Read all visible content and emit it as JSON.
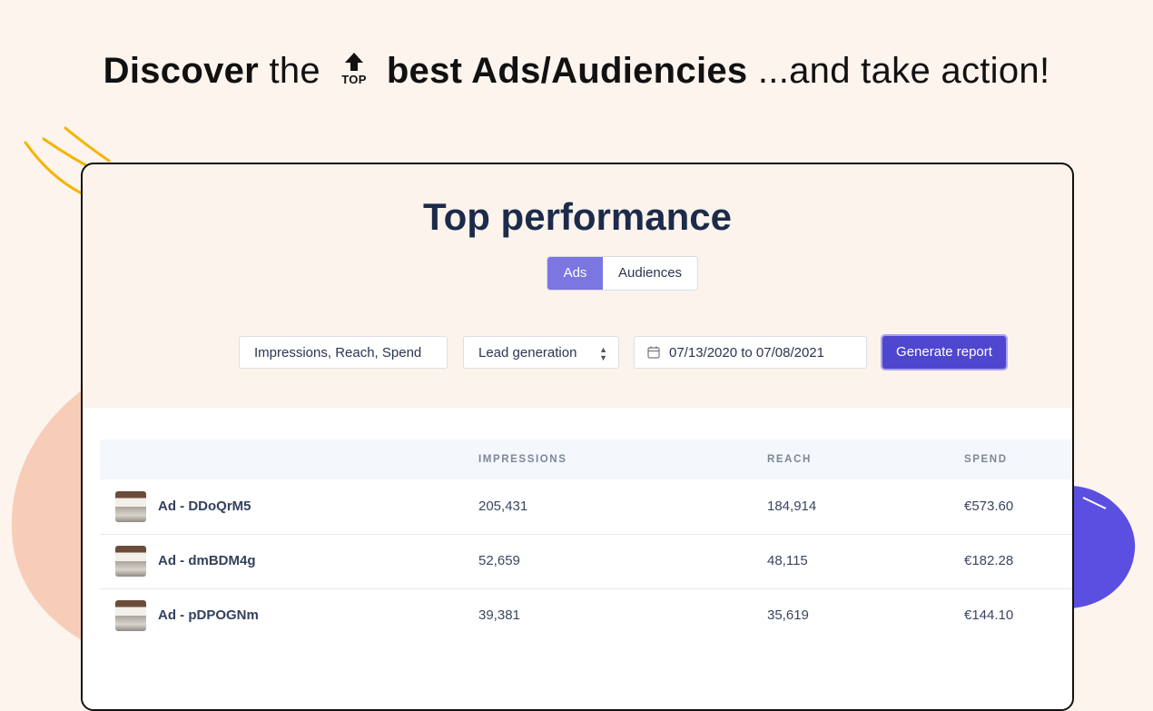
{
  "headline": {
    "part1": "Discover",
    "part2": "the",
    "icon_label": "TOP",
    "part3": "best Ads/Audiencies",
    "part4": "...and take action!"
  },
  "panel": {
    "title": "Top performance",
    "tabs": [
      {
        "label": "Ads",
        "active": true
      },
      {
        "label": "Audiences",
        "active": false
      }
    ],
    "filters": {
      "metrics": "Impressions, Reach, Spend",
      "objective": "Lead generation",
      "date_range": "07/13/2020 to 07/08/2021"
    },
    "generate_label": "Generate report"
  },
  "table": {
    "columns": [
      "",
      "IMPRESSIONS",
      "REACH",
      "SPEND"
    ],
    "rows": [
      {
        "name": "Ad - DDoQrM5",
        "impressions": "205,431",
        "reach": "184,914",
        "spend": "€573.60"
      },
      {
        "name": "Ad - dmBDM4g",
        "impressions": "52,659",
        "reach": "48,115",
        "spend": "€182.28"
      },
      {
        "name": "Ad - pDPOGNm",
        "impressions": "39,381",
        "reach": "35,619",
        "spend": "€144.10"
      }
    ]
  },
  "colors": {
    "background": "#fcf4ed",
    "accent": "#4f46cf",
    "tab_active": "#7b76e0",
    "peach_blob": "#f7cdb8",
    "purple_blob": "#5a4fe0",
    "yellow_lines": "#f5b400"
  }
}
